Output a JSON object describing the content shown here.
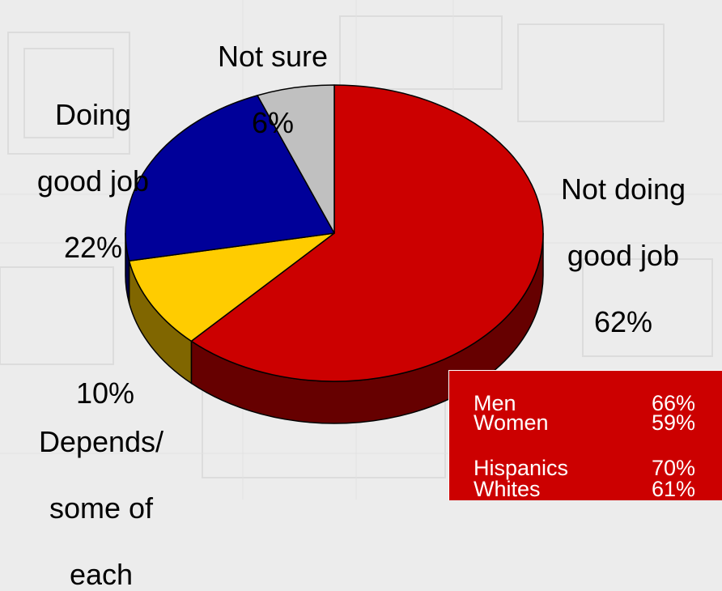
{
  "chart_data": {
    "type": "pie",
    "slices": [
      {
        "label_lines": [
          "Not doing",
          "good job"
        ],
        "value": 62,
        "value_label": "62%",
        "color": "#cc0000",
        "side_color": "#660000"
      },
      {
        "label_lines": [
          "Depends/",
          "some of",
          "each"
        ],
        "value": 10,
        "value_label": "10%",
        "color": "#ffcc00",
        "side_color": "#806600"
      },
      {
        "label_lines": [
          "Doing",
          "good job"
        ],
        "value": 22,
        "value_label": "22%",
        "color": "#000099",
        "side_color": "#00004d"
      },
      {
        "label_lines": [
          "Not sure"
        ],
        "value": 6,
        "value_label": "6%",
        "color": "#c0c0c0",
        "side_color": "#606060"
      }
    ],
    "three_d": true,
    "background": "#ececec"
  },
  "breakdown": {
    "background": "#cc0000",
    "rows": [
      {
        "group": "Men",
        "value": "66%"
      },
      {
        "group": "Women",
        "value": "59%"
      },
      {
        "group": "Hispanics",
        "value": "70%"
      },
      {
        "group": "Whites",
        "value": "61%"
      }
    ]
  }
}
